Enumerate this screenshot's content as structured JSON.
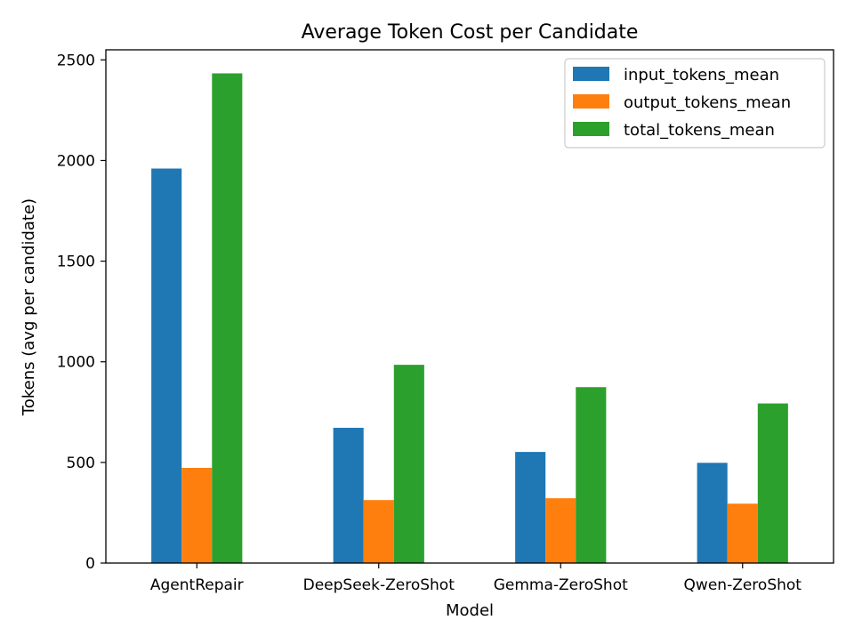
{
  "chart_data": {
    "type": "bar",
    "title": "Average Token Cost per Candidate",
    "xlabel": "Model",
    "ylabel": "Tokens (avg per candidate)",
    "categories": [
      "AgentRepair",
      "DeepSeek-ZeroShot",
      "Gemma-ZeroShot",
      "Qwen-ZeroShot"
    ],
    "ylim": [
      0,
      2550
    ],
    "yticks": [
      0,
      500,
      1000,
      1500,
      2000,
      2500
    ],
    "legend_position": "top-right",
    "grid": false,
    "series": [
      {
        "name": "input_tokens_mean",
        "color": "#1f77b4",
        "values": [
          1960,
          672,
          552,
          498
        ]
      },
      {
        "name": "output_tokens_mean",
        "color": "#ff7f0e",
        "values": [
          473,
          313,
          322,
          295
        ]
      },
      {
        "name": "total_tokens_mean",
        "color": "#2ca02c",
        "values": [
          2433,
          985,
          874,
          793
        ]
      }
    ]
  }
}
